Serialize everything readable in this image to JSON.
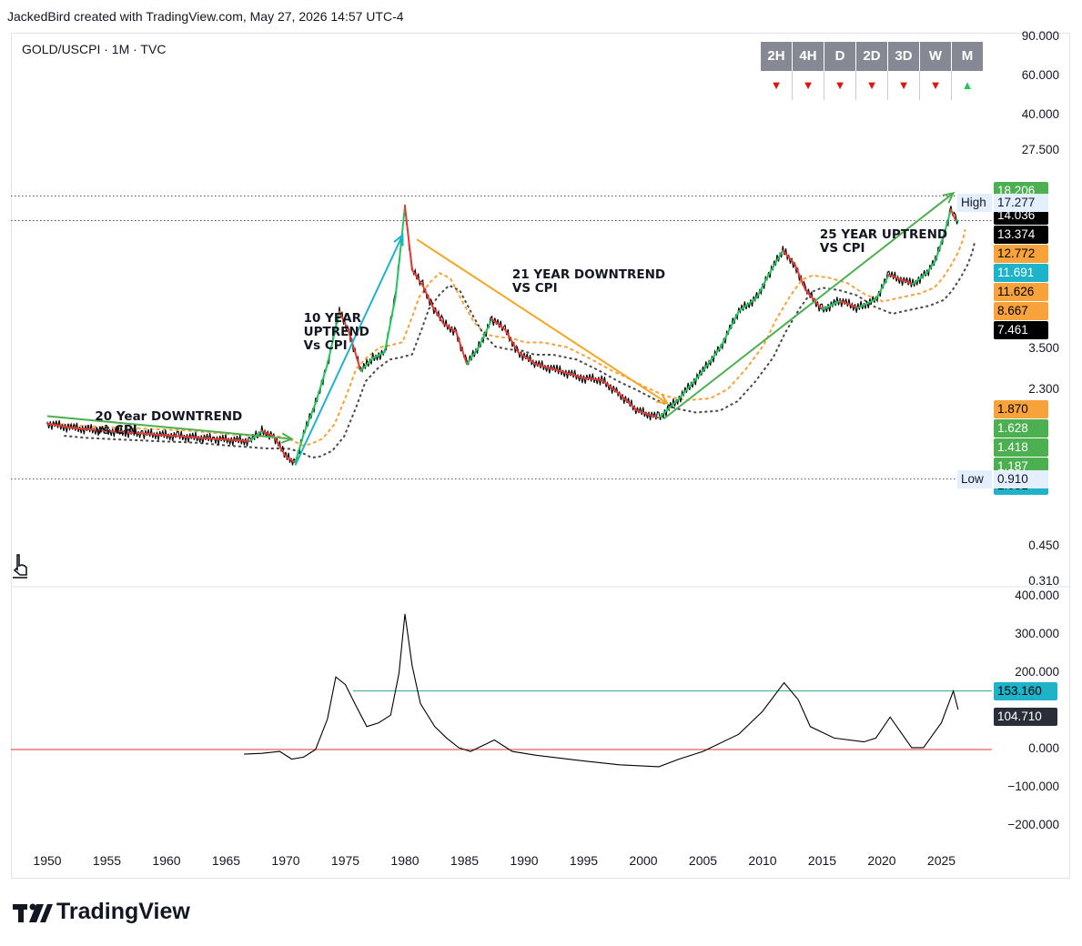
{
  "header": {
    "credit": "JackedBird created with TradingView.com, May 27, 2026 14:57 UTC-4"
  },
  "symbol": {
    "label": "GOLD/USCPI · 1M · TVC"
  },
  "timeframes": [
    {
      "label": "2H",
      "trend": "down",
      "glyph": "▼"
    },
    {
      "label": "4H",
      "trend": "down",
      "glyph": "▼"
    },
    {
      "label": "D",
      "trend": "down",
      "glyph": "▼"
    },
    {
      "label": "2D",
      "trend": "down",
      "glyph": "▼"
    },
    {
      "label": "3D",
      "trend": "down",
      "glyph": "▼"
    },
    {
      "label": "W",
      "trend": "down",
      "glyph": "▼"
    },
    {
      "label": "M",
      "trend": "up",
      "glyph": "▲"
    }
  ],
  "colors": {
    "price": "#000000",
    "uptrend": "#22c55e",
    "downtrend": "#e53935",
    "ma_orange": "#f7a23a",
    "ma_dark": "#4a4a4a",
    "arrow_cyan": "#1fb3c9",
    "arrow_orange": "#f5a623",
    "arrow_green": "#4caf50",
    "hline_teal": "#26a69a",
    "hline_red": "#e53935",
    "up": "#22c55e",
    "down": "#e0140f"
  },
  "main_scale": [
    "90.000",
    "60.000",
    "40.000",
    "27.500",
    "3.500",
    "2.300",
    "0.450",
    "0.310"
  ],
  "osc_scale": [
    "400.000",
    "300.000",
    "200.000",
    "0.000",
    "−100.000",
    "−200.000"
  ],
  "price_pills": [
    {
      "text": "18.206",
      "bg": "#4caf50",
      "fg": "#ffffff"
    },
    {
      "text": "14.036",
      "bg": "#000000",
      "fg": "#ffffff"
    },
    {
      "text": "13.374",
      "bg": "#000000",
      "fg": "#ffffff"
    },
    {
      "text": "12.772",
      "bg": "#f7a23a",
      "fg": "#000000"
    },
    {
      "text": "11.691",
      "bg": "#1fb3c9",
      "fg": "#ffffff"
    },
    {
      "text": "11.626",
      "bg": "#f7a23a",
      "fg": "#000000"
    },
    {
      "text": "8.667",
      "bg": "#f7a23a",
      "fg": "#000000"
    },
    {
      "text": "7.461",
      "bg": "#000000",
      "fg": "#ffffff"
    },
    {
      "text": "1.870",
      "bg": "#f7a23a",
      "fg": "#000000"
    },
    {
      "text": "1.628",
      "bg": "#4caf50",
      "fg": "#ffffff"
    },
    {
      "text": "1.418",
      "bg": "#4caf50",
      "fg": "#ffffff"
    },
    {
      "text": "1.187",
      "bg": "#4caf50",
      "fg": "#ffffff"
    },
    {
      "text": "1.051",
      "bg": "#1fb3c9",
      "fg": "#000000"
    }
  ],
  "high": {
    "label": "High",
    "value": "17.277"
  },
  "low": {
    "label": "Low",
    "value": "0.910"
  },
  "osc_pills": [
    {
      "text": "153.160",
      "bg": "#1fb3c9",
      "fg": "#000000"
    },
    {
      "text": "104.710",
      "bg": "#2a2e39",
      "fg": "#ffffff"
    }
  ],
  "annotations": [
    {
      "text": "20 Year DOWNTREND\nvs CPI"
    },
    {
      "text": "10 YEAR\nUPTREND\nVs CPI"
    },
    {
      "text": "21 YEAR DOWNTREND\nVS CPI"
    },
    {
      "text": "25 YEAR UPTREND\nVS CPI"
    }
  ],
  "branding": {
    "logo_text": "TradingView"
  },
  "chart_data": [
    {
      "type": "line",
      "series_name": "GOLD/USCPI",
      "x_unit": "year",
      "y_scale": "log",
      "x_ticks": [
        "1950",
        "1955",
        "1960",
        "1965",
        "1970",
        "1975",
        "1980",
        "1985",
        "1990",
        "1995",
        "2000",
        "2005",
        "2010",
        "2015",
        "2020",
        "2025"
      ],
      "x": [
        1950,
        1952,
        1955,
        1958,
        1961,
        1964,
        1967,
        1968,
        1969,
        1970,
        1970.8,
        1971.5,
        1972.5,
        1973.5,
        1974.5,
        1975.3,
        1976.3,
        1977.3,
        1978.3,
        1979.2,
        1980.0,
        1980.6,
        1981.5,
        1982.3,
        1983.2,
        1984.3,
        1985.2,
        1986.2,
        1987.3,
        1988.4,
        1989.5,
        1991,
        1993,
        1995,
        1996.5,
        1998,
        1999.5,
        2001.3,
        2003,
        2005,
        2006.5,
        2008,
        2009.5,
        2010.5,
        2011.7,
        2012.7,
        2013.6,
        2015,
        2016.5,
        2018,
        2019.5,
        2020.6,
        2022.6,
        2023.8,
        2024.5,
        2025.2,
        2025.8,
        2026.2,
        2026.4
      ],
      "y": [
        1.62,
        1.55,
        1.5,
        1.46,
        1.42,
        1.38,
        1.35,
        1.5,
        1.42,
        1.15,
        1.08,
        1.45,
        2.0,
        3.0,
        5.2,
        4.2,
        2.8,
        3.2,
        3.4,
        6.0,
        15.5,
        8.0,
        6.8,
        5.5,
        4.6,
        4.2,
        3.0,
        3.6,
        4.8,
        4.3,
        3.4,
        3.0,
        2.8,
        2.6,
        2.55,
        2.2,
        1.85,
        1.72,
        2.1,
        2.8,
        3.6,
        5.2,
        6.0,
        7.6,
        9.8,
        8.5,
        6.5,
        5.3,
        5.8,
        5.4,
        5.9,
        7.6,
        6.9,
        7.8,
        8.8,
        11.5,
        15.0,
        13.374,
        13.374
      ],
      "annotations": [
        "20 Year DOWNTREND vs CPI",
        "10 YEAR UPTREND Vs CPI",
        "21 YEAR DOWNTREND VS CPI",
        "25 YEAR UPTREND VS CPI"
      ],
      "high": 17.277,
      "low": 0.91
    },
    {
      "type": "line",
      "series_name": "oscillator",
      "x": [
        1966.5,
        1968,
        1969.5,
        1970.5,
        1971.5,
        1972.5,
        1973.5,
        1974.2,
        1975,
        1975.8,
        1976.8,
        1977.8,
        1978.8,
        1979.5,
        1980,
        1980.6,
        1981.3,
        1982.5,
        1983.5,
        1984.5,
        1985.5,
        1987.5,
        1989,
        1991,
        1995,
        1998,
        2001.3,
        2003,
        2005,
        2008,
        2010,
        2011.8,
        2013,
        2014,
        2016,
        2018.5,
        2019.5,
        2020.7,
        2022.5,
        2023.5,
        2025,
        2026,
        2026.4
      ],
      "y": [
        -12,
        -10,
        -5,
        -25,
        -20,
        0,
        80,
        190,
        170,
        120,
        60,
        70,
        90,
        200,
        355,
        220,
        120,
        60,
        30,
        5,
        -5,
        25,
        -5,
        -15,
        -30,
        -40,
        -45,
        -25,
        -5,
        40,
        100,
        175,
        130,
        60,
        30,
        20,
        30,
        85,
        5,
        5,
        70,
        153.16,
        104.71
      ],
      "hlines": [
        153.16,
        0
      ],
      "ylim": [
        -200,
        400
      ]
    }
  ]
}
